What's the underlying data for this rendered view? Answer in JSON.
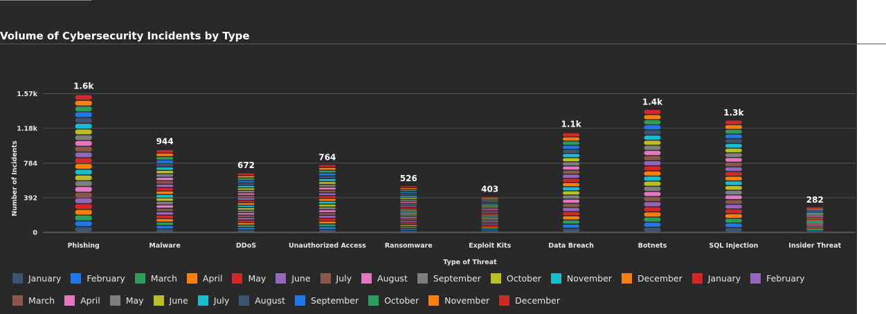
{
  "title": "Volume of Cybersecurity Incidents by Type",
  "chart_data": {
    "type": "bar",
    "stacked": true,
    "xlabel": "Type of Threat",
    "ylabel": "Number of Incidents",
    "ylim": [
      0,
      1660
    ],
    "yticks": [
      0,
      392,
      784,
      1180,
      1570
    ],
    "ytick_labels": [
      "0",
      "392",
      "784",
      "1.18k",
      "1.57k"
    ],
    "grid": true,
    "legend_position": "bottom",
    "categories": [
      "Phishing",
      "Malware",
      "DDoS",
      "Unauthorized Access",
      "Ransomware",
      "Exploit Kits",
      "Data Breach",
      "Botnets",
      "SQL Injection",
      "Insider Threat"
    ],
    "totals": [
      1570,
      944,
      672,
      764,
      526,
      403,
      1140,
      1390,
      1270,
      282
    ],
    "total_labels": [
      "1.6k",
      "944",
      "672",
      "764",
      "526",
      "403",
      "1.1k",
      "1.4k",
      "1.3k",
      "282"
    ],
    "series": [
      {
        "name": "January",
        "color": "#3b5573",
        "values": [
          65,
          39,
          28,
          32,
          22,
          17,
          47,
          58,
          53,
          12
        ]
      },
      {
        "name": "February",
        "color": "#1f77e8",
        "values": [
          65,
          39,
          28,
          32,
          22,
          17,
          47,
          58,
          53,
          12
        ]
      },
      {
        "name": "March",
        "color": "#2ca05a",
        "values": [
          65,
          39,
          28,
          32,
          22,
          17,
          47,
          58,
          53,
          12
        ]
      },
      {
        "name": "April",
        "color": "#ff7f0e",
        "values": [
          65,
          39,
          28,
          32,
          22,
          17,
          47,
          58,
          53,
          12
        ]
      },
      {
        "name": "May",
        "color": "#d62728",
        "values": [
          65,
          39,
          28,
          32,
          22,
          17,
          47,
          58,
          53,
          12
        ]
      },
      {
        "name": "June",
        "color": "#9467bd",
        "values": [
          65,
          39,
          28,
          32,
          22,
          17,
          47,
          58,
          53,
          12
        ]
      },
      {
        "name": "July",
        "color": "#8c564b",
        "values": [
          65,
          39,
          28,
          32,
          22,
          17,
          47,
          58,
          53,
          12
        ]
      },
      {
        "name": "August",
        "color": "#e377c2",
        "values": [
          65,
          39,
          28,
          32,
          22,
          17,
          47,
          58,
          53,
          12
        ]
      },
      {
        "name": "September",
        "color": "#7f7f7f",
        "values": [
          65,
          39,
          28,
          32,
          22,
          17,
          47,
          58,
          53,
          12
        ]
      },
      {
        "name": "October",
        "color": "#bcbd22",
        "values": [
          65,
          39,
          28,
          32,
          22,
          17,
          47,
          58,
          53,
          12
        ]
      },
      {
        "name": "November",
        "color": "#17becf",
        "values": [
          65,
          39,
          28,
          32,
          22,
          17,
          47,
          58,
          53,
          12
        ]
      },
      {
        "name": "December",
        "color": "#ff7f0e",
        "values": [
          65,
          39,
          28,
          32,
          22,
          17,
          47,
          58,
          53,
          12
        ]
      },
      {
        "name": "January",
        "color": "#d62728",
        "values": [
          65,
          39,
          28,
          32,
          22,
          17,
          47,
          58,
          53,
          12
        ]
      },
      {
        "name": "February",
        "color": "#9467bd",
        "values": [
          65,
          39,
          28,
          32,
          22,
          17,
          47,
          58,
          53,
          12
        ]
      },
      {
        "name": "March",
        "color": "#8c564b",
        "values": [
          65,
          39,
          28,
          32,
          22,
          17,
          47,
          58,
          53,
          12
        ]
      },
      {
        "name": "April",
        "color": "#e377c2",
        "values": [
          65,
          39,
          28,
          32,
          22,
          17,
          47,
          58,
          53,
          12
        ]
      },
      {
        "name": "May",
        "color": "#7f7f7f",
        "values": [
          65,
          39,
          28,
          32,
          22,
          17,
          47,
          58,
          53,
          12
        ]
      },
      {
        "name": "June",
        "color": "#bcbd22",
        "values": [
          65,
          39,
          28,
          32,
          22,
          17,
          47,
          58,
          53,
          12
        ]
      },
      {
        "name": "July",
        "color": "#17becf",
        "values": [
          65,
          39,
          28,
          32,
          22,
          17,
          47,
          58,
          53,
          12
        ]
      },
      {
        "name": "August",
        "color": "#3b5573",
        "values": [
          65,
          39,
          28,
          32,
          22,
          17,
          47,
          58,
          53,
          12
        ]
      },
      {
        "name": "September",
        "color": "#1f77e8",
        "values": [
          65,
          39,
          28,
          32,
          22,
          17,
          47,
          58,
          53,
          12
        ]
      },
      {
        "name": "October",
        "color": "#2ca05a",
        "values": [
          65,
          39,
          28,
          32,
          22,
          17,
          47,
          58,
          53,
          12
        ]
      },
      {
        "name": "November",
        "color": "#ff7f0e",
        "values": [
          65,
          39,
          28,
          32,
          22,
          17,
          47,
          58,
          53,
          12
        ]
      },
      {
        "name": "December",
        "color": "#d62728",
        "values": [
          65,
          39,
          28,
          32,
          22,
          17,
          47,
          58,
          53,
          12
        ]
      }
    ]
  }
}
